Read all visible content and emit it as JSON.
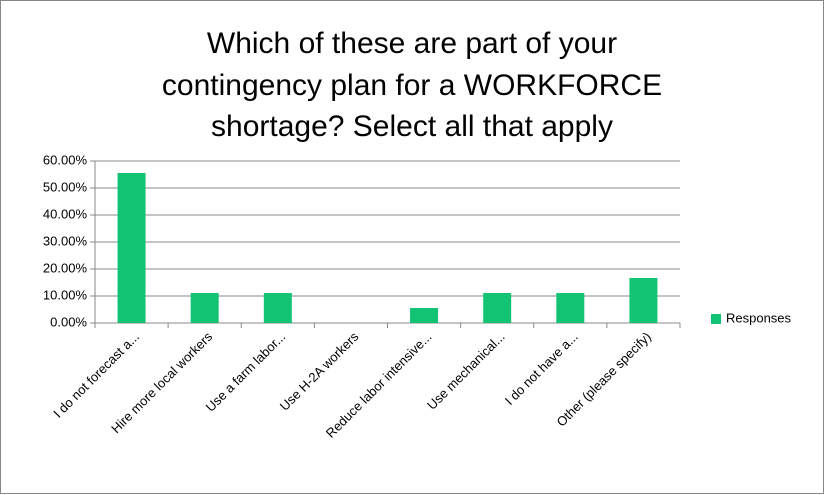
{
  "chart_data": {
    "type": "bar",
    "title": [
      "Which of these are part of your",
      "contingency plan for a WORKFORCE",
      "shortage? Select all that apply"
    ],
    "categories": [
      "I do not forecast a...",
      "Hire more local workers",
      "Use a farm labor...",
      "Use H-2A workers",
      "Reduce labor intensive...",
      "Use mechanical...",
      "I do not have a...",
      "Other (please specify)"
    ],
    "series": [
      {
        "name": "Responses",
        "color": "#13c374",
        "values": [
          55.56,
          11.11,
          11.11,
          0,
          5.56,
          11.11,
          11.11,
          16.67
        ]
      }
    ],
    "ylim": [
      0,
      60
    ],
    "yticks": [
      {
        "value": 0,
        "label": "0.00%"
      },
      {
        "value": 10,
        "label": "10.00%"
      },
      {
        "value": 20,
        "label": "20.00%"
      },
      {
        "value": 30,
        "label": "30.00%"
      },
      {
        "value": 40,
        "label": "40.00%"
      },
      {
        "value": 50,
        "label": "50.00%"
      },
      {
        "value": 60,
        "label": "60.00%"
      }
    ],
    "grid": true,
    "legend": "right"
  }
}
